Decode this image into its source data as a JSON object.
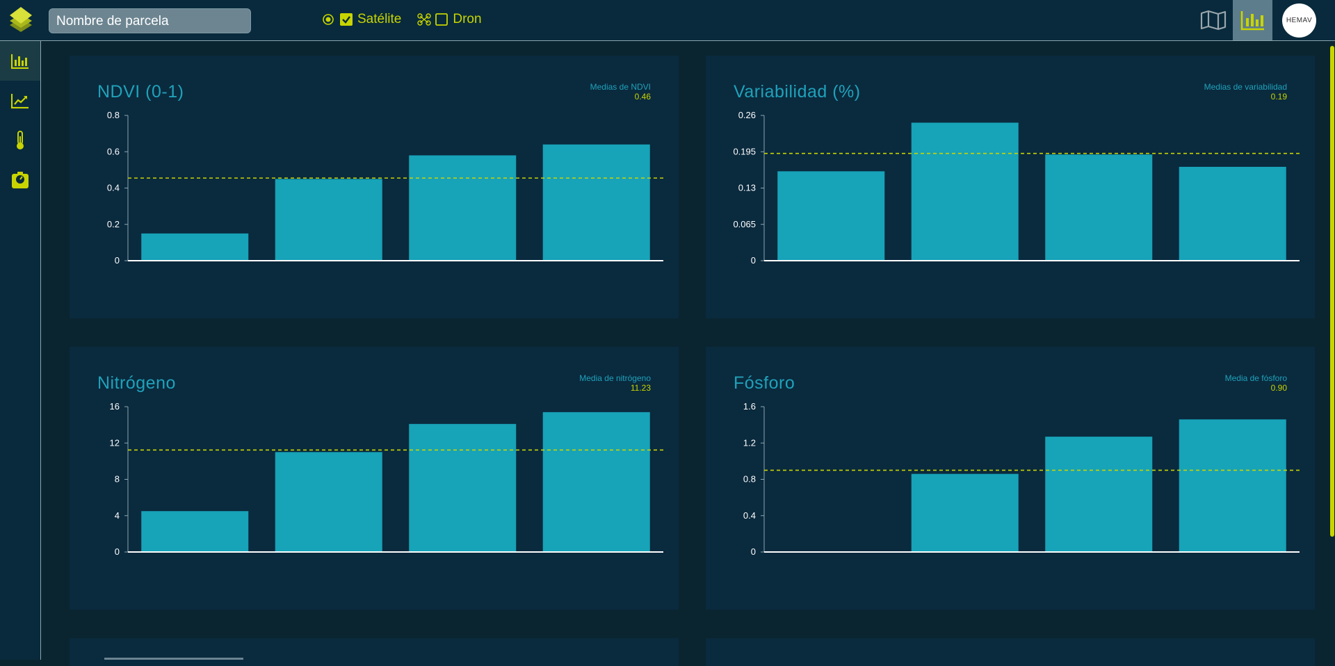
{
  "header": {
    "plot_name": "Nombre de parcela",
    "sources": [
      {
        "label": "Satélite",
        "checked": true
      },
      {
        "label": "Dron",
        "checked": false
      }
    ],
    "avatar_text": "HEMAV"
  },
  "colors": {
    "accent": "#c8d400",
    "bar": "#17a3b8",
    "title": "#1fa2ba",
    "background": "#0a2a3e"
  },
  "cards": [
    {
      "title": "NDVI (0-1)",
      "avg_label": "Medias de NDVI",
      "avg_value": "0.46"
    },
    {
      "title": "Variabilidad (%)",
      "avg_label": "Medias de variabilidad",
      "avg_value": "0.19"
    },
    {
      "title": "Nitrógeno",
      "avg_label": "Media de nitrógeno",
      "avg_value": "11.23"
    },
    {
      "title": "Fósforo",
      "avg_label": "Media de fósforo",
      "avg_value": "0.90"
    }
  ],
  "chart_data": [
    {
      "type": "bar",
      "title": "NDVI (0-1)",
      "values": [
        0.15,
        0.45,
        0.58,
        0.64
      ],
      "ylim": [
        0,
        0.8
      ],
      "yticks": [
        "0",
        "0.2",
        "0.4",
        "0.6",
        "0.8"
      ],
      "mean": 0.455
    },
    {
      "type": "bar",
      "title": "Variabilidad (%)",
      "values": [
        0.16,
        0.247,
        0.19,
        0.168
      ],
      "ylim": [
        0,
        0.26
      ],
      "yticks": [
        "0",
        "0.065",
        "0.13",
        "0.195",
        "0.26"
      ],
      "mean": 0.192
    },
    {
      "type": "bar",
      "title": "Nitrógeno",
      "values": [
        4.5,
        11.0,
        14.1,
        15.4
      ],
      "ylim": [
        0,
        16
      ],
      "yticks": [
        "0",
        "4",
        "8",
        "12",
        "16"
      ],
      "mean": 11.23
    },
    {
      "type": "bar",
      "title": "Fósforo",
      "values": [
        0,
        0.86,
        1.27,
        1.46
      ],
      "ylim": [
        0,
        1.6
      ],
      "yticks": [
        "0",
        "0.4",
        "0.8",
        "1.2",
        "1.6"
      ],
      "mean": 0.9
    }
  ]
}
